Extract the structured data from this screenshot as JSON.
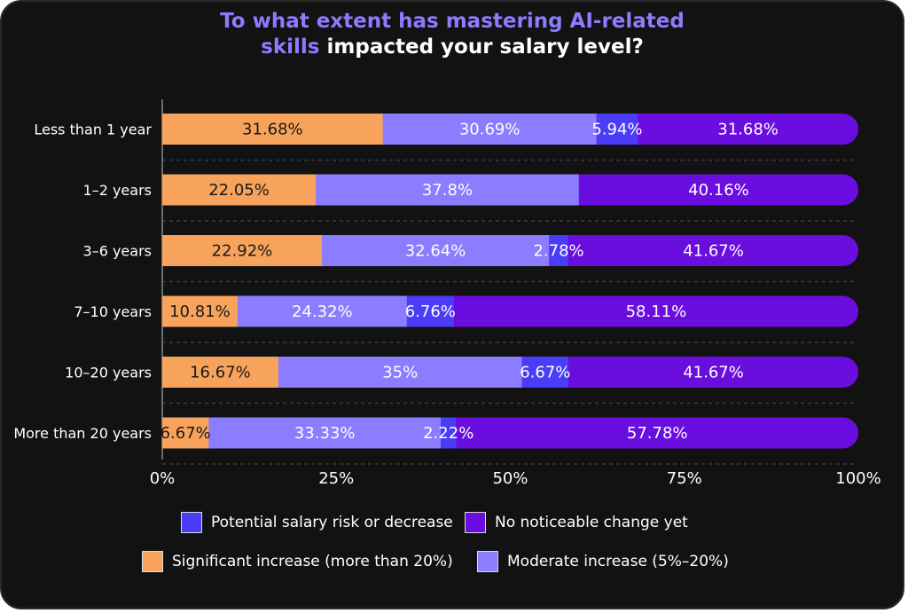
{
  "chart_data": {
    "type": "bar",
    "orientation": "horizontal",
    "stacked": true,
    "title": {
      "line1_highlight": "To what extent has mastering AI-related",
      "line2_highlight": "skills",
      "line2_rest": " impacted your salary level?"
    },
    "categories": [
      "Less than 1 year",
      "1–2 years",
      "3–6 years",
      "7–10 years",
      "10–20 years",
      "More than 20 years"
    ],
    "series": [
      {
        "name": "Significant increase (more than 20%)",
        "color": "#f7a35c",
        "values": [
          31.68,
          22.05,
          22.92,
          10.81,
          16.67,
          6.67
        ],
        "labels": [
          "31.68%",
          "22.05%",
          "22.92%",
          "10.81%",
          "16.67%",
          "6.67%"
        ]
      },
      {
        "name": "Moderate increase (5%–20%)",
        "color": "#8c7cff",
        "values": [
          30.69,
          37.8,
          32.64,
          24.32,
          35,
          33.33
        ],
        "labels": [
          "30.69%",
          "37.8%",
          "32.64%",
          "24.32%",
          "35%",
          "33.33%"
        ]
      },
      {
        "name": "Potential salary risk or decrease",
        "color": "#4a3cf7",
        "values": [
          5.94,
          0,
          2.78,
          6.76,
          6.67,
          2.22
        ],
        "labels": [
          "5.94%",
          "",
          "2.78%",
          "6.76%",
          "6.67%",
          "2.22%"
        ]
      },
      {
        "name": "No noticeable change yet",
        "color": "#6a0ddf",
        "values": [
          31.68,
          40.16,
          41.67,
          58.11,
          41.67,
          57.78
        ],
        "labels": [
          "31.68%",
          "40.16%",
          "41.67%",
          "58.11%",
          "41.67%",
          "57.78%"
        ]
      }
    ],
    "x_ticks": [
      "0%",
      "25%",
      "50%",
      "75%",
      "100%"
    ],
    "xlim": [
      0,
      100
    ],
    "grid": "dashed horizontal separators",
    "legend": {
      "placement": "bottom",
      "order": [
        2,
        3,
        0,
        1
      ]
    },
    "colors": {
      "background": "#121212",
      "title_highlight": "#8c7cff",
      "text": "#ffffff"
    }
  }
}
